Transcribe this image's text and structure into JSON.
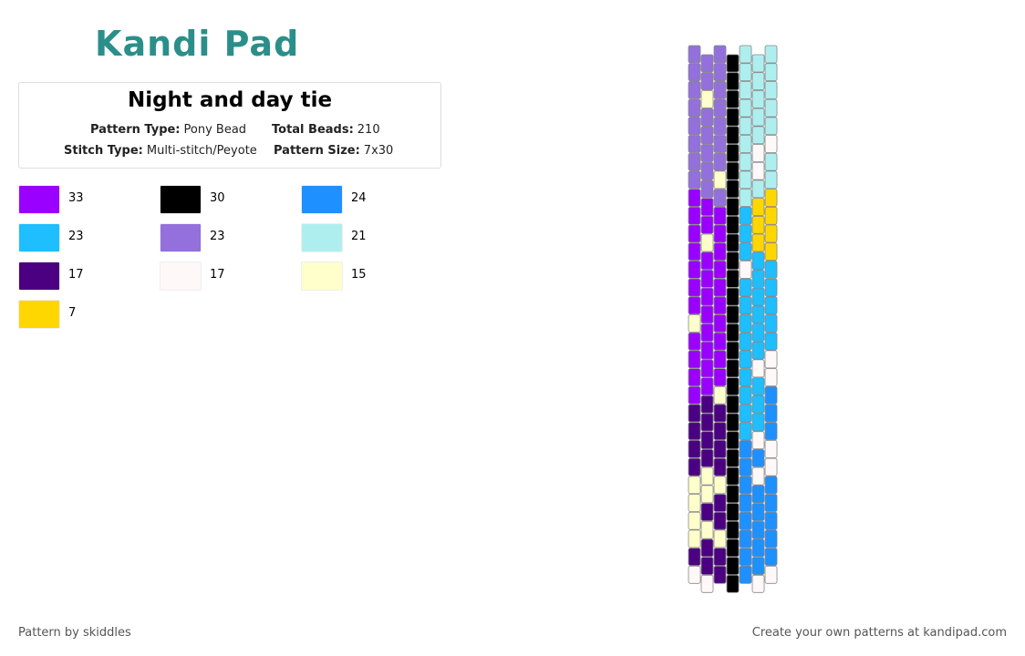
{
  "header": {
    "logo": "Kandi Pad"
  },
  "card": {
    "title": "Night and day tie",
    "fields": [
      {
        "label": "Pattern Type:",
        "value": "Pony Bead"
      },
      {
        "label": "Total Beads:",
        "value": "210"
      },
      {
        "label": "Stitch Type:",
        "value": "Multi-stitch/Peyote"
      },
      {
        "label": "Pattern Size:",
        "value": "7x30"
      }
    ]
  },
  "legend": [
    {
      "color": "#9900ff",
      "count": "33"
    },
    {
      "color": "#000000",
      "count": "30"
    },
    {
      "color": "#1e90ff",
      "count": "24"
    },
    {
      "color": "#1ebeff",
      "count": "23"
    },
    {
      "color": "#9370db",
      "count": "23"
    },
    {
      "color": "#afeeee",
      "count": "21"
    },
    {
      "color": "#4b0082",
      "count": "17"
    },
    {
      "color": "#fff8f8",
      "count": "17"
    },
    {
      "color": "#ffffcc",
      "count": "15"
    },
    {
      "color": "#ffd700",
      "count": "7"
    }
  ],
  "pattern": {
    "columns": [
      "444444440000000800006666888867",
      "448444440080000000066668868667",
      "444444484000000000086666866866",
      "111111111111111111111111111111",
      "555555555333733333333322222222",
      "555557759993333337333727222227",
      "555557559999333337722277222227"
    ]
  },
  "footer": {
    "left": "Pattern by skiddles",
    "right": "Create your own patterns at kandipad.com"
  }
}
